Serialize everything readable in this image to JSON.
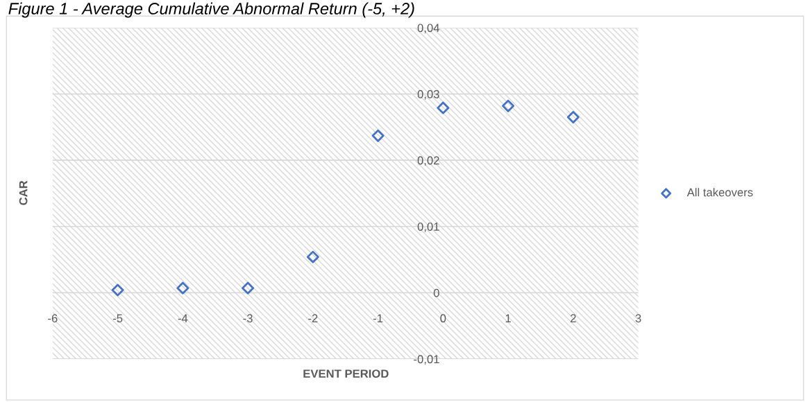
{
  "chart_data": {
    "type": "scatter",
    "title": "Figure 1 - Average Cumulative Abnormal Return (-5, +2)",
    "xlabel": "EVENT PERIOD",
    "ylabel": "CAR",
    "x": [
      -5,
      -4,
      -3,
      -2,
      -1,
      0,
      1,
      2
    ],
    "series": [
      {
        "name": "All takeovers",
        "color": "#4472c4",
        "values": [
          0.0004,
          0.0007,
          0.0007,
          0.0054,
          0.0237,
          0.0279,
          0.0282,
          0.0265
        ]
      }
    ],
    "xlim": [
      -6,
      3
    ],
    "xticks": [
      -6,
      -5,
      -4,
      -3,
      -2,
      -1,
      0,
      1,
      2,
      3
    ],
    "ylim": [
      -0.01,
      0.04
    ],
    "yticks": [
      {
        "value": -0.01,
        "label": "-0,01"
      },
      {
        "value": 0,
        "label": "0"
      },
      {
        "value": 0.01,
        "label": "0,01"
      },
      {
        "value": 0.02,
        "label": "0,02"
      },
      {
        "value": 0.03,
        "label": "0,03"
      },
      {
        "value": 0.04,
        "label": "0,04"
      }
    ],
    "grid": "y",
    "legend": "right",
    "marker": "diamond"
  }
}
